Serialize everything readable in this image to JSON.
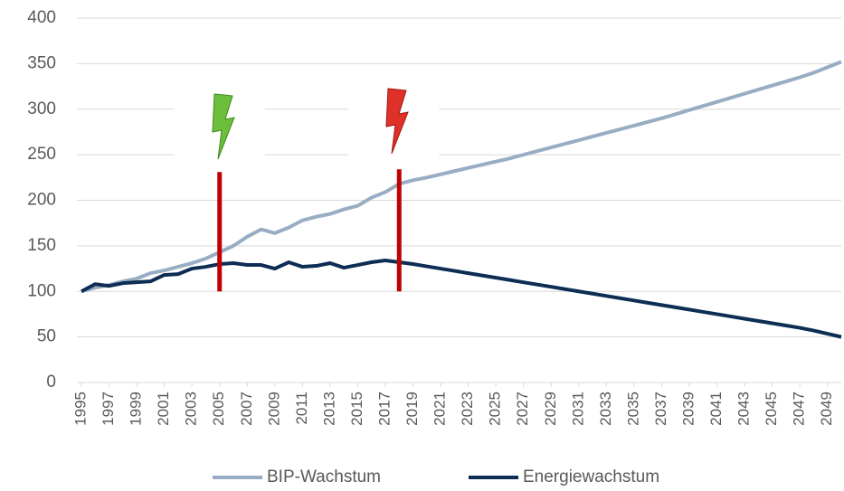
{
  "chart_data": {
    "type": "line",
    "x": [
      1995,
      1996,
      1997,
      1998,
      1999,
      2000,
      2001,
      2002,
      2003,
      2004,
      2005,
      2006,
      2007,
      2008,
      2009,
      2010,
      2011,
      2012,
      2013,
      2014,
      2015,
      2016,
      2017,
      2018,
      2019,
      2020,
      2021,
      2022,
      2023,
      2024,
      2025,
      2026,
      2027,
      2028,
      2029,
      2030,
      2031,
      2032,
      2033,
      2034,
      2035,
      2036,
      2037,
      2038,
      2039,
      2040,
      2041,
      2042,
      2043,
      2044,
      2045,
      2046,
      2047,
      2048,
      2049,
      2050
    ],
    "series": [
      {
        "name": "BIP-Wachstum",
        "color": "#98adc3",
        "values": [
          100,
          104,
          107,
          111,
          114,
          120,
          123,
          127,
          131,
          136,
          143,
          150,
          160,
          168,
          164,
          170,
          178,
          182,
          185,
          190,
          194,
          203,
          209,
          218,
          222,
          225,
          228.5,
          232,
          235.5,
          239,
          242.5,
          246,
          250,
          254,
          258,
          262,
          266,
          270,
          274,
          278,
          282,
          286,
          290,
          294.5,
          299,
          303.5,
          308,
          312.5,
          317,
          321.5,
          326,
          330.5,
          335,
          340,
          346,
          352
        ]
      },
      {
        "name": "Energiewachstum",
        "color": "#0d2d54",
        "values": [
          100,
          108,
          106,
          109,
          110,
          111,
          118,
          119,
          125,
          127,
          130,
          131,
          129,
          129,
          125,
          132,
          127,
          128,
          131,
          126,
          129,
          132,
          134,
          132,
          130,
          127.5,
          125,
          122.5,
          120,
          117.5,
          115,
          112.5,
          110,
          107.5,
          105,
          102.5,
          100,
          97.5,
          95,
          92.5,
          90,
          87.5,
          85,
          82.5,
          80,
          77.5,
          75,
          72.5,
          70,
          67.5,
          65,
          62.5,
          60,
          57,
          53.5,
          50
        ]
      }
    ],
    "annotations": [
      {
        "x": 2005,
        "ymin": 100,
        "ymax": 231,
        "color": "#c00000"
      },
      {
        "x": 2018,
        "ymin": 100,
        "ymax": 234,
        "color": "#c00000"
      }
    ],
    "xlim": [
      1995,
      2050
    ],
    "xticks": [
      1995,
      1997,
      1999,
      2001,
      2003,
      2005,
      2007,
      2009,
      2011,
      2013,
      2015,
      2017,
      2019,
      2021,
      2023,
      2025,
      2027,
      2029,
      2031,
      2033,
      2035,
      2037,
      2039,
      2041,
      2043,
      2045,
      2047,
      2049
    ],
    "ylim": [
      0,
      400
    ],
    "yticks": [
      0,
      50,
      100,
      150,
      200,
      250,
      300,
      350,
      400
    ],
    "grid": true,
    "legend": "bottom"
  }
}
